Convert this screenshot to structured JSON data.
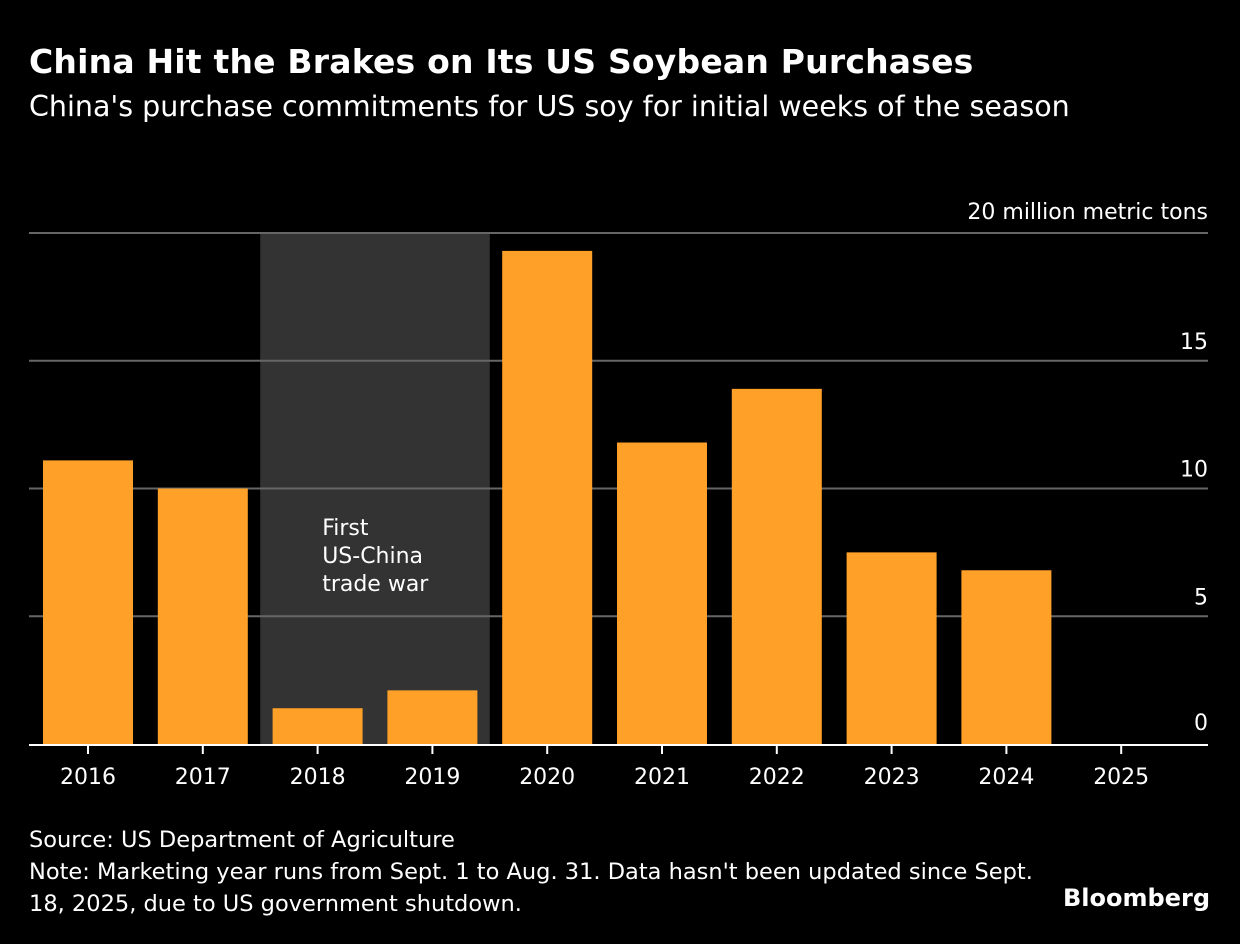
{
  "header": {
    "title": "China Hit the Brakes on Its US Soybean Purchases",
    "subtitle": "China's purchase commitments for US soy for initial weeks of the season"
  },
  "footer": {
    "source": "Source: US Department of Agriculture",
    "note": "Note: Marketing year runs from Sept. 1 to Aug. 31. Data hasn't been updated since Sept. 18, 2025, due to US government shutdown.",
    "brand": "Bloomberg"
  },
  "colors": {
    "background": "#000000",
    "bar": "#FFA028",
    "shade": "#333333",
    "grid": "#666666",
    "text": "#FFFFFF"
  },
  "chart_data": {
    "type": "bar",
    "title": "China Hit the Brakes on Its US Soybean Purchases",
    "subtitle": "China's purchase commitments for US soy for initial weeks of the season",
    "xlabel": "",
    "ylabel": "million metric tons",
    "unit_label": "20 million metric tons",
    "categories": [
      "2016",
      "2017",
      "2018",
      "2019",
      "2020",
      "2021",
      "2022",
      "2023",
      "2024",
      "2025"
    ],
    "values": [
      11.1,
      10.0,
      1.4,
      2.1,
      19.3,
      11.8,
      13.9,
      7.5,
      6.8,
      0
    ],
    "ylim": [
      0,
      20
    ],
    "yticks": [
      0,
      5,
      10,
      15,
      20
    ],
    "ytick_labels": [
      "0",
      "5",
      "10",
      "15",
      "20 million metric tons"
    ],
    "grid": true,
    "y_axis_side": "right",
    "annotations": [
      {
        "type": "shaded-range",
        "from": "2018",
        "to": "2019",
        "lines": [
          "First",
          "US-China",
          "trade war"
        ]
      }
    ]
  }
}
